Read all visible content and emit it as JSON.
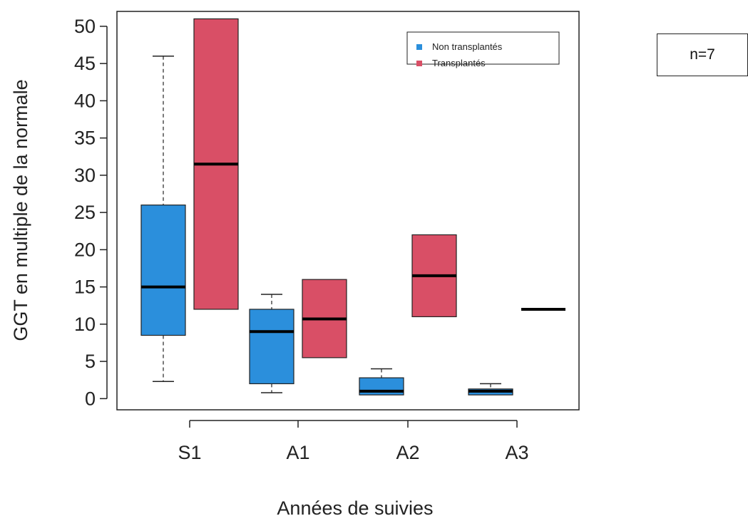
{
  "annotation": {
    "n_label": "n=7"
  },
  "chart_data": {
    "type": "boxplot",
    "xlabel": "Années de suivies",
    "ylabel": "GGT en multiple de la normale",
    "categories": [
      "S1",
      "A1",
      "A2",
      "A3"
    ],
    "ylim": [
      -1.5,
      52
    ],
    "yticks": [
      0,
      5,
      10,
      15,
      20,
      25,
      30,
      35,
      40,
      45,
      50
    ],
    "legend": {
      "position": "top-right"
    },
    "series": [
      {
        "name": "Non transplantés",
        "color": "#2b8fdc",
        "boxes": [
          {
            "category": "S1",
            "min": 2.3,
            "q1": 8.5,
            "median": 15,
            "q3": 26,
            "max": 46
          },
          {
            "category": "A1",
            "min": 0.8,
            "q1": 2,
            "median": 9,
            "q3": 12,
            "max": 14
          },
          {
            "category": "A2",
            "min": 0.5,
            "q1": 0.5,
            "median": 1,
            "q3": 2.8,
            "max": 4
          },
          {
            "category": "A3",
            "min": 0.5,
            "q1": 0.5,
            "median": 1,
            "q3": 1.3,
            "max": 2
          }
        ]
      },
      {
        "name": "Transplantés",
        "color": "#d94f66",
        "boxes": [
          {
            "category": "S1",
            "min": 12,
            "q1": 12,
            "median": 31.5,
            "q3": 51,
            "max": 51
          },
          {
            "category": "A1",
            "min": 5.5,
            "q1": 5.5,
            "median": 10.7,
            "q3": 16,
            "max": 16
          },
          {
            "category": "A2",
            "min": 11,
            "q1": 11,
            "median": 16.5,
            "q3": 22,
            "max": 22
          },
          {
            "category": "A3",
            "min": 12,
            "q1": 12,
            "median": 12,
            "q3": 12,
            "max": 12
          }
        ]
      }
    ]
  }
}
